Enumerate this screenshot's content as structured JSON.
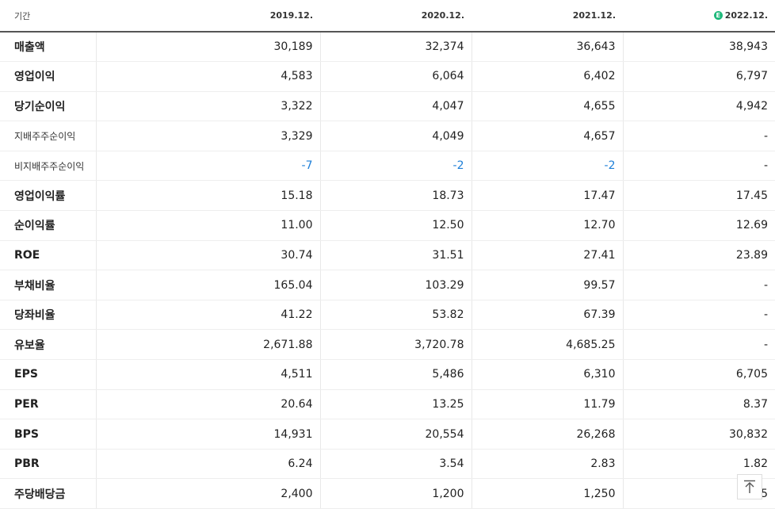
{
  "header": {
    "period_label": "기간",
    "columns": [
      {
        "label": "2019.12.",
        "estimate": false
      },
      {
        "label": "2020.12.",
        "estimate": false
      },
      {
        "label": "2021.12.",
        "estimate": false
      },
      {
        "label": "2022.12.",
        "estimate": true,
        "icon": "estimate-icon",
        "icon_glyph": "E"
      }
    ]
  },
  "rows": [
    {
      "label": "매출액",
      "values": [
        "30,189",
        "32,374",
        "36,643",
        "38,943"
      ]
    },
    {
      "label": "영업이익",
      "values": [
        "4,583",
        "6,064",
        "6,402",
        "6,797"
      ]
    },
    {
      "label": "당기순이익",
      "values": [
        "3,322",
        "4,047",
        "4,655",
        "4,942"
      ]
    },
    {
      "label": "지배주주순이익",
      "values": [
        "3,329",
        "4,049",
        "4,657",
        "-"
      ]
    },
    {
      "label": "비지배주주순이익",
      "values": [
        "-7",
        "-2",
        "-2",
        "-"
      ]
    },
    {
      "label": "영업이익률",
      "values": [
        "15.18",
        "18.73",
        "17.47",
        "17.45"
      ]
    },
    {
      "label": "순이익률",
      "values": [
        "11.00",
        "12.50",
        "12.70",
        "12.69"
      ]
    },
    {
      "label": "ROE",
      "values": [
        "30.74",
        "31.51",
        "27.41",
        "23.89"
      ]
    },
    {
      "label": "부채비율",
      "values": [
        "165.04",
        "103.29",
        "99.57",
        "-"
      ]
    },
    {
      "label": "당좌비율",
      "values": [
        "41.22",
        "53.82",
        "67.39",
        "-"
      ]
    },
    {
      "label": "유보율",
      "values": [
        "2,671.88",
        "3,720.78",
        "4,685.25",
        "-"
      ]
    },
    {
      "label": "EPS",
      "values": [
        "4,511",
        "5,486",
        "6,310",
        "6,705"
      ]
    },
    {
      "label": "PER",
      "values": [
        "20.64",
        "13.25",
        "11.79",
        "8.37"
      ]
    },
    {
      "label": "BPS",
      "values": [
        "14,931",
        "20,554",
        "26,268",
        "30,832"
      ]
    },
    {
      "label": "PBR",
      "values": [
        "6.24",
        "3.54",
        "2.83",
        "1.82"
      ]
    },
    {
      "label": "주당배당금",
      "values": [
        "2,400",
        "1,200",
        "1,250",
        "1,5"
      ]
    }
  ],
  "scroll_top_button": {
    "icon": "arrow-up-icon"
  },
  "colors": {
    "negative": "#1e7fd8",
    "estimate": "#1fb97b"
  }
}
